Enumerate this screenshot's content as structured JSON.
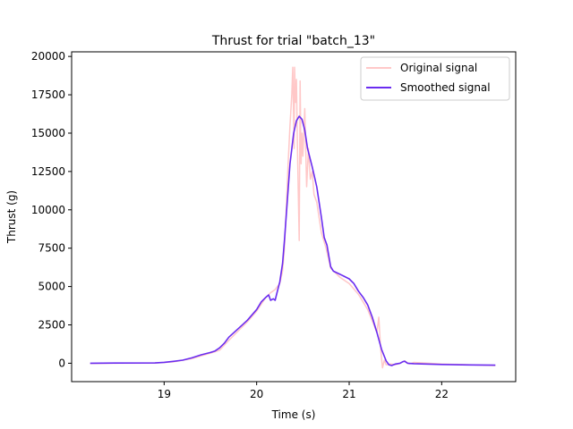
{
  "chart_data": {
    "type": "line",
    "title": "Thrust for trial \"batch_13\"",
    "xlabel": "Time (s)",
    "ylabel": "Thrust (g)",
    "xlim": [
      18.0,
      22.8
    ],
    "ylim": [
      -1200,
      20300
    ],
    "xticks": [
      19,
      20,
      21,
      22
    ],
    "yticks": [
      0,
      2500,
      5000,
      7500,
      10000,
      12500,
      15000,
      17500,
      20000
    ],
    "grid": false,
    "legend_position": "upper-right",
    "series": [
      {
        "name": "Original signal",
        "color": "#ffc8c8",
        "points": [
          [
            18.2,
            -20
          ],
          [
            18.5,
            0
          ],
          [
            18.9,
            10
          ],
          [
            19.1,
            90
          ],
          [
            19.3,
            300
          ],
          [
            19.5,
            650
          ],
          [
            19.6,
            850
          ],
          [
            19.7,
            1500
          ],
          [
            19.8,
            2100
          ],
          [
            19.9,
            2700
          ],
          [
            20.0,
            3400
          ],
          [
            20.1,
            4300
          ],
          [
            20.15,
            4600
          ],
          [
            20.2,
            4800
          ],
          [
            20.25,
            5200
          ],
          [
            20.28,
            6000
          ],
          [
            20.3,
            7500
          ],
          [
            20.32,
            10000
          ],
          [
            20.34,
            13000
          ],
          [
            20.36,
            15500
          ],
          [
            20.38,
            17500
          ],
          [
            20.39,
            19300
          ],
          [
            20.405,
            14000
          ],
          [
            20.41,
            19300
          ],
          [
            20.42,
            17000
          ],
          [
            20.43,
            18500
          ],
          [
            20.44,
            14500
          ],
          [
            20.45,
            11000
          ],
          [
            20.46,
            8000
          ],
          [
            20.47,
            18400
          ],
          [
            20.48,
            13000
          ],
          [
            20.49,
            15000
          ],
          [
            20.5,
            13500
          ],
          [
            20.52,
            16600
          ],
          [
            20.54,
            11500
          ],
          [
            20.56,
            14000
          ],
          [
            20.58,
            12000
          ],
          [
            20.6,
            12500
          ],
          [
            20.62,
            11000
          ],
          [
            20.65,
            10500
          ],
          [
            20.7,
            8500
          ],
          [
            20.75,
            7500
          ],
          [
            20.8,
            6200
          ],
          [
            20.9,
            5600
          ],
          [
            21.0,
            5200
          ],
          [
            21.1,
            4500
          ],
          [
            21.2,
            3500
          ],
          [
            21.3,
            2000
          ],
          [
            21.32,
            3000
          ],
          [
            21.34,
            1000
          ],
          [
            21.36,
            -300
          ],
          [
            21.38,
            200
          ],
          [
            21.4,
            -100
          ],
          [
            21.45,
            -50
          ],
          [
            21.5,
            -100
          ],
          [
            21.55,
            0
          ],
          [
            21.6,
            150
          ],
          [
            21.65,
            -50
          ],
          [
            21.7,
            50
          ],
          [
            22.0,
            -50
          ],
          [
            22.3,
            -100
          ],
          [
            22.58,
            -150
          ]
        ]
      },
      {
        "name": "Smoothed signal",
        "color": "#6a2cf0",
        "points": [
          [
            18.2,
            0
          ],
          [
            18.5,
            10
          ],
          [
            18.9,
            20
          ],
          [
            19.0,
            60
          ],
          [
            19.1,
            120
          ],
          [
            19.2,
            200
          ],
          [
            19.3,
            350
          ],
          [
            19.4,
            550
          ],
          [
            19.5,
            700
          ],
          [
            19.55,
            800
          ],
          [
            19.6,
            1000
          ],
          [
            19.65,
            1300
          ],
          [
            19.7,
            1700
          ],
          [
            19.8,
            2250
          ],
          [
            19.9,
            2800
          ],
          [
            20.0,
            3500
          ],
          [
            20.05,
            4000
          ],
          [
            20.1,
            4300
          ],
          [
            20.13,
            4450
          ],
          [
            20.15,
            4100
          ],
          [
            20.18,
            4200
          ],
          [
            20.2,
            4100
          ],
          [
            20.22,
            4600
          ],
          [
            20.25,
            5300
          ],
          [
            20.28,
            6500
          ],
          [
            20.3,
            8000
          ],
          [
            20.33,
            10500
          ],
          [
            20.36,
            13000
          ],
          [
            20.4,
            15000
          ],
          [
            20.43,
            15800
          ],
          [
            20.46,
            16100
          ],
          [
            20.49,
            15900
          ],
          [
            20.52,
            15200
          ],
          [
            20.55,
            14000
          ],
          [
            20.6,
            12800
          ],
          [
            20.65,
            11500
          ],
          [
            20.7,
            9500
          ],
          [
            20.73,
            8200
          ],
          [
            20.76,
            7700
          ],
          [
            20.8,
            6300
          ],
          [
            20.83,
            6000
          ],
          [
            20.9,
            5800
          ],
          [
            20.95,
            5650
          ],
          [
            21.0,
            5500
          ],
          [
            21.05,
            5200
          ],
          [
            21.1,
            4700
          ],
          [
            21.15,
            4300
          ],
          [
            21.2,
            3800
          ],
          [
            21.25,
            3000
          ],
          [
            21.3,
            2000
          ],
          [
            21.35,
            900
          ],
          [
            21.4,
            150
          ],
          [
            21.43,
            -100
          ],
          [
            21.46,
            -150
          ],
          [
            21.5,
            -50
          ],
          [
            21.55,
            0
          ],
          [
            21.58,
            100
          ],
          [
            21.6,
            130
          ],
          [
            21.63,
            0
          ],
          [
            21.7,
            -30
          ],
          [
            22.0,
            -80
          ],
          [
            22.3,
            -110
          ],
          [
            22.58,
            -130
          ]
        ]
      }
    ]
  }
}
